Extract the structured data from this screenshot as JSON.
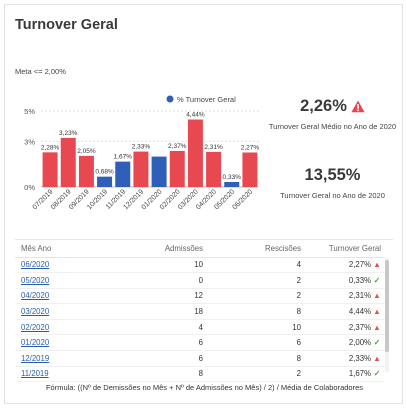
{
  "title": "Turnover Geral",
  "meta_text": "Meta <= 2,00%",
  "kpis": [
    {
      "value": "2,26%",
      "label": "Turnover Geral Médio no Ano de 2020",
      "icon": "warning-icon"
    },
    {
      "value": "13,55%",
      "label": "Turnover Geral no Ano de 2020"
    }
  ],
  "colors": {
    "above_target": "#e8484f",
    "within_target": "#2f5fb8",
    "link": "#2a5db0"
  },
  "chart_data": {
    "type": "bar",
    "categories": [
      "07/2019",
      "08/2019",
      "09/2019",
      "10/2019",
      "11/2019",
      "12/2019",
      "01/2020",
      "02/2020",
      "03/2020",
      "04/2020",
      "05/2020",
      "06/2020"
    ],
    "values": [
      2.28,
      3.23,
      2.05,
      0.68,
      1.67,
      2.33,
      2.0,
      2.37,
      4.44,
      2.31,
      0.33,
      2.27
    ],
    "data_labels": [
      "2,28%",
      "3,23%",
      "2,05%",
      "0,68%",
      "1,67%",
      "2,33%",
      "",
      "2,37%",
      "4,44%",
      "2,31%",
      "0,33%",
      "2,27%"
    ],
    "colors": [
      "#e8484f",
      "#e8484f",
      "#e8484f",
      "#2f5fb8",
      "#2f5fb8",
      "#e8484f",
      "#2f5fb8",
      "#e8484f",
      "#e8484f",
      "#e8484f",
      "#2f5fb8",
      "#e8484f"
    ],
    "y_ticks": [
      "0%",
      "3%",
      "5%"
    ],
    "y_tick_values": [
      0,
      3,
      5
    ],
    "ylim": [
      0,
      5
    ],
    "legend": "% Turnover Geral",
    "legend_color": "#2f5fb8",
    "legend_position": "top-right",
    "title": "",
    "xlabel": "",
    "ylabel": ""
  },
  "table": {
    "headers": [
      "Mês Ano",
      "Admissões",
      "Rescisões",
      "Turnover Geral"
    ],
    "rows": [
      {
        "month": "06/2020",
        "admissoes": "10",
        "rescisoes": "4",
        "turnover": "2,27%",
        "status": "warning"
      },
      {
        "month": "05/2020",
        "admissoes": "0",
        "rescisoes": "2",
        "turnover": "0,33%",
        "status": "ok"
      },
      {
        "month": "04/2020",
        "admissoes": "12",
        "rescisoes": "2",
        "turnover": "2,31%",
        "status": "warning"
      },
      {
        "month": "03/2020",
        "admissoes": "18",
        "rescisoes": "8",
        "turnover": "4,44%",
        "status": "warning"
      },
      {
        "month": "02/2020",
        "admissoes": "4",
        "rescisoes": "10",
        "turnover": "2,37%",
        "status": "warning"
      },
      {
        "month": "01/2020",
        "admissoes": "6",
        "rescisoes": "6",
        "turnover": "2,00%",
        "status": "ok"
      },
      {
        "month": "12/2019",
        "admissoes": "6",
        "rescisoes": "8",
        "turnover": "2,33%",
        "status": "warning"
      },
      {
        "month": "11/2019",
        "admissoes": "8",
        "rescisoes": "2",
        "turnover": "1,67%",
        "status": "ok"
      }
    ]
  },
  "formula": "Fórmula: ((Nº de Demissões no Mês + Nº de Admissões no Mês) / 2) / Média de Colaboradores"
}
